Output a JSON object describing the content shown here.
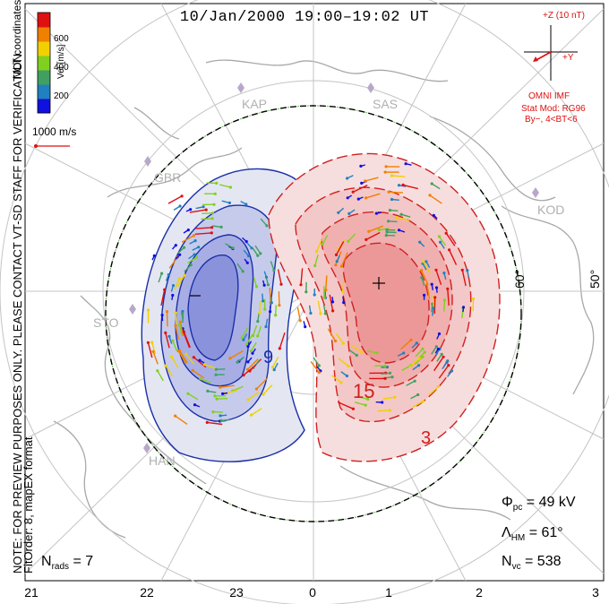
{
  "title": "10/Jan/2000 19:00–19:02 UT",
  "note_line1": "NOTE: FOR PREVIEW PURPOSES ONLY. PLEASE CONTACT VT-SD STAFF FOR VERIFICATION.",
  "note_line2": "FitOrder: 8, mapEX format",
  "coord_label": "MLT coordinates",
  "colorbar": {
    "label": "Vel [m/s]",
    "ticks": [
      "200",
      "400",
      "600"
    ],
    "colors": [
      "#1010e0",
      "#2080c0",
      "#40a060",
      "#80d020",
      "#f0d000",
      "#f08000",
      "#e01010"
    ]
  },
  "scale_vector": "1000 m/s",
  "imf": {
    "z_label": "+Z (10 nT)",
    "y_label": "+Y",
    "source": "OMNI IMF",
    "model": "Stat Mod: RG96",
    "condition": "By−, 4<BT<6"
  },
  "stations": [
    "KAP",
    "SAS",
    "GBR",
    "KOD",
    "STO",
    "HAN"
  ],
  "lat_labels": [
    "60°",
    "50°"
  ],
  "mlt_labels": [
    "21",
    "22",
    "23",
    "0",
    "1",
    "2",
    "3"
  ],
  "contour_labels": [
    "9",
    "15",
    "3"
  ],
  "extremum_marks": [
    "−",
    "+"
  ],
  "stats": {
    "phi_pc_sym": "Φ",
    "phi_pc_sub": "pc",
    "phi_pc_value": "= 49 kV",
    "lambda_hm_sym": "Λ",
    "lambda_hm_sub": "HM",
    "lambda_hm_value": "= 61°",
    "n_vc_sym": "N",
    "n_vc_sub": "vc",
    "n_vc_value": "= 538",
    "n_rads_sym": "N",
    "n_rads_sub": "rads",
    "n_rads_value": "= 7"
  }
}
